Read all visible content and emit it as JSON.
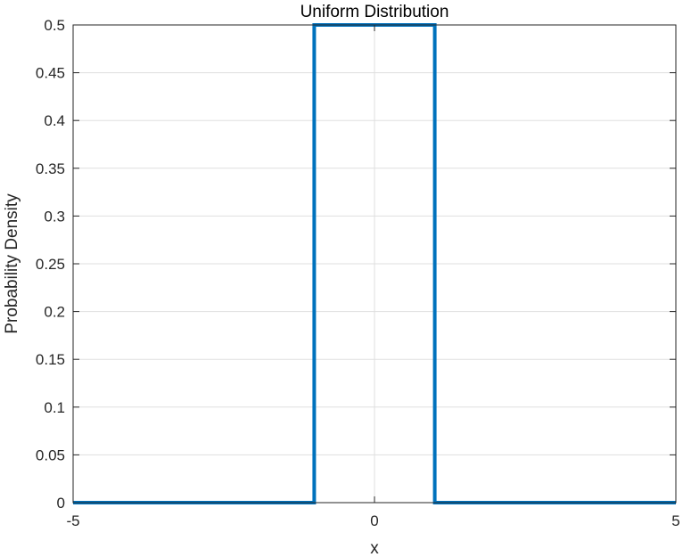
{
  "chart_data": {
    "type": "line",
    "title": "Uniform Distribution",
    "xlabel": "x",
    "ylabel": "Probability Density",
    "xlim": [
      -5,
      5
    ],
    "ylim": [
      0,
      0.5
    ],
    "xticks": [
      -5,
      0,
      5
    ],
    "xtick_labels": [
      "-5",
      "0",
      "5"
    ],
    "yticks": [
      0,
      0.05,
      0.1,
      0.15,
      0.2,
      0.25,
      0.3,
      0.35,
      0.4,
      0.45,
      0.5
    ],
    "ytick_labels": [
      "0",
      "0.05",
      "0.1",
      "0.15",
      "0.2",
      "0.25",
      "0.3",
      "0.35",
      "0.4",
      "0.45",
      "0.5"
    ],
    "grid": true,
    "series": [
      {
        "color": "#0072BD",
        "x": [
          -5,
          -1,
          -1,
          1,
          1,
          5
        ],
        "y": [
          0,
          0,
          0.5,
          0.5,
          0,
          0
        ]
      }
    ]
  }
}
